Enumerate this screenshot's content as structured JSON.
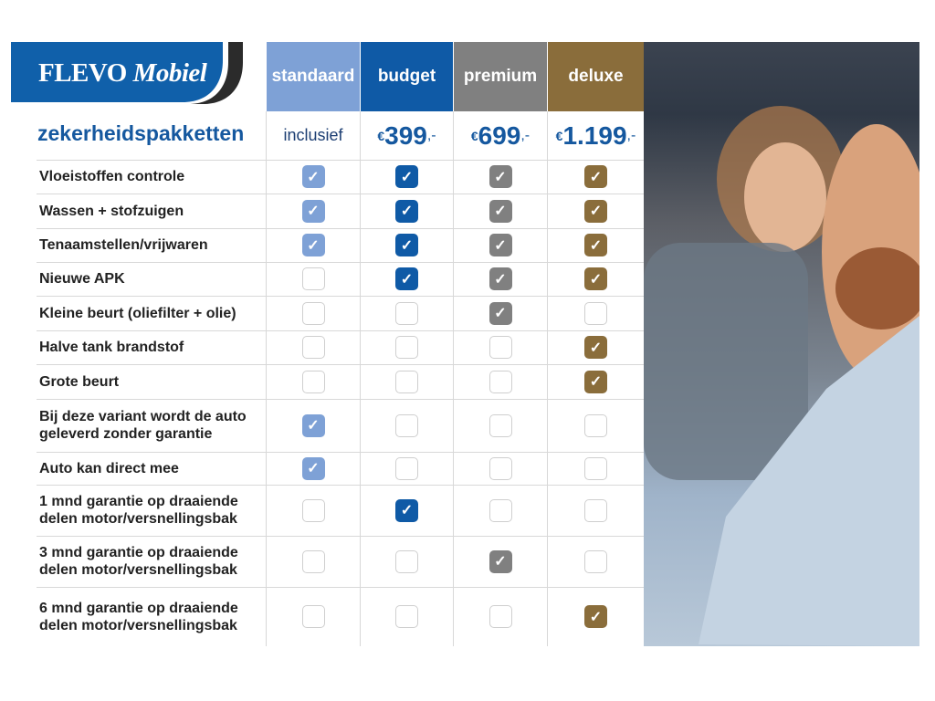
{
  "logo": {
    "text_main": "FLEVO",
    "text_italic": "Mobiel",
    "color": "#1060aa"
  },
  "title": "zekerheidspakketten",
  "packages": [
    {
      "name": "standaard",
      "price": "inclusief",
      "color": "#7ea1d6"
    },
    {
      "name": "budget",
      "price_symbol": "€",
      "price": "399",
      "price_suffix": ",-",
      "color": "#0f5aa6"
    },
    {
      "name": "premium",
      "price_symbol": "€",
      "price": "699",
      "price_suffix": ",-",
      "color": "#808080"
    },
    {
      "name": "deluxe",
      "price_symbol": "€",
      "price": "1.199",
      "price_suffix": ",-",
      "color": "#8a6d3b"
    }
  ],
  "rows": [
    {
      "label": "Vloeistoffen controle",
      "checks": [
        true,
        true,
        true,
        true
      ]
    },
    {
      "label": "Wassen + stofzuigen",
      "checks": [
        true,
        true,
        true,
        true
      ]
    },
    {
      "label": "Tenaamstellen/vrijwaren",
      "checks": [
        true,
        true,
        true,
        true
      ]
    },
    {
      "label": "Nieuwe APK",
      "checks": [
        false,
        true,
        true,
        true
      ]
    },
    {
      "label": "Kleine beurt (oliefilter + olie)",
      "checks": [
        false,
        false,
        true,
        false
      ]
    },
    {
      "label": "Halve tank brandstof",
      "checks": [
        false,
        false,
        false,
        true
      ]
    },
    {
      "label": "Grote beurt",
      "checks": [
        false,
        false,
        false,
        true
      ]
    },
    {
      "label": "Bij deze variant wordt de auto geleverd zonder garantie",
      "checks": [
        true,
        false,
        false,
        false
      ]
    },
    {
      "label": "Auto kan direct mee",
      "checks": [
        true,
        false,
        false,
        false
      ]
    },
    {
      "label": "1 mnd garantie op draaiende delen motor/versnellingsbak",
      "checks": [
        false,
        true,
        false,
        false
      ]
    },
    {
      "label": "3 mnd garantie op draaiende delen motor/versnellingsbak",
      "checks": [
        false,
        false,
        true,
        false
      ]
    },
    {
      "label": "6 mnd garantie op draaiende delen motor/versnellingsbak",
      "checks": [
        false,
        false,
        false,
        true
      ]
    }
  ],
  "photo": {
    "description_icon": "photo-couple-in-car"
  }
}
